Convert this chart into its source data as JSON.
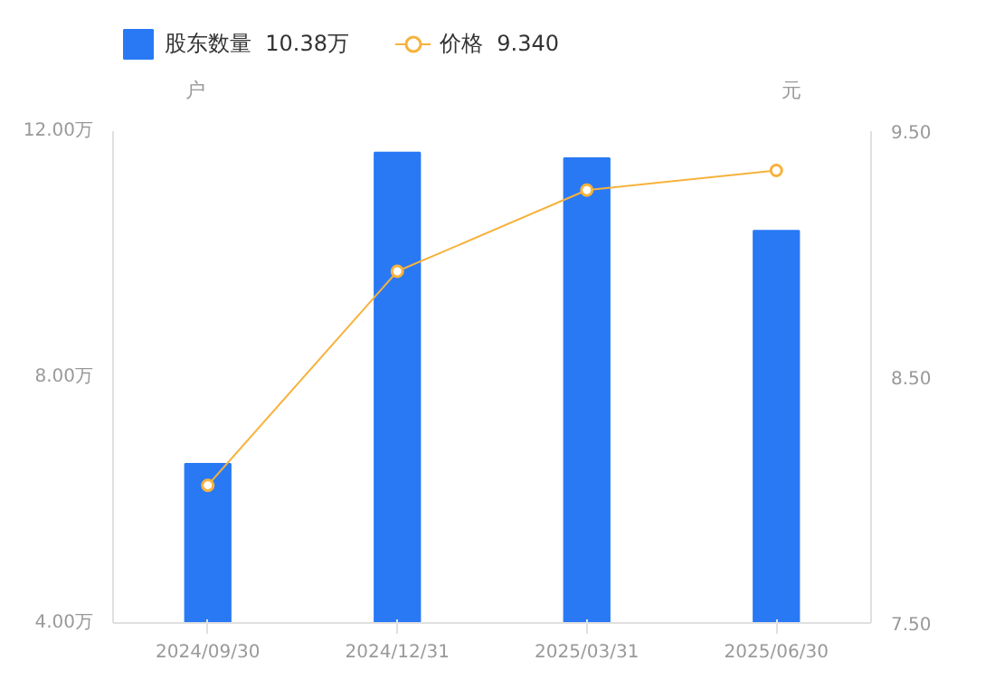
{
  "chart_data": {
    "type": "bar",
    "categories": [
      "2024/09/30",
      "2024/12/31",
      "2025/03/31",
      "2025/06/30"
    ],
    "series": [
      {
        "name": "股东数量  10.38万",
        "color": "#2979f5",
        "values": [
          6.59,
          11.65,
          11.56,
          10.38
        ]
      },
      {
        "name": "价格  9.340",
        "type": "line",
        "axis": "y2",
        "color": "#f7b23b",
        "values": [
          8.06,
          8.93,
          9.26,
          9.34
        ]
      }
    ],
    "ylabel": "户",
    "y2label": "元",
    "ylim": [
      4,
      12
    ],
    "yticks": [
      {
        "value": 4,
        "label": "4.00万"
      },
      {
        "value": 8,
        "label": "8.00万"
      },
      {
        "value": 12,
        "label": "12.00万"
      }
    ],
    "y2lim": [
      7.5,
      9.5
    ],
    "y2ticks": [
      {
        "value": 7.5,
        "label": "7.50"
      },
      {
        "value": 8.5,
        "label": "8.50"
      },
      {
        "value": 9.5,
        "label": "9.50"
      }
    ],
    "grid": false,
    "legend": "top left",
    "marker": "circle",
    "line_style": "solid"
  }
}
